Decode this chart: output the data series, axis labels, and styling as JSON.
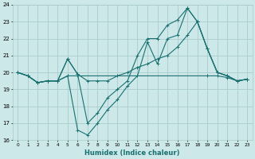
{
  "xlabel": "Humidex (Indice chaleur)",
  "ylabel": "",
  "bg_color": "#cce8e8",
  "line_color": "#1a7070",
  "grid_color": "#aacccc",
  "xlim": [
    -0.5,
    23.5
  ],
  "ylim": [
    16,
    24
  ],
  "xticks": [
    0,
    1,
    2,
    3,
    4,
    5,
    6,
    7,
    8,
    9,
    10,
    11,
    12,
    13,
    14,
    15,
    16,
    17,
    18,
    19,
    20,
    21,
    22,
    23
  ],
  "yticks": [
    16,
    17,
    18,
    19,
    20,
    21,
    22,
    23,
    24
  ],
  "lines": [
    {
      "x": [
        0,
        1,
        2,
        3,
        4,
        5,
        6,
        19,
        20,
        21,
        22,
        23
      ],
      "y": [
        20,
        19.8,
        19.4,
        19.5,
        19.5,
        19.8,
        19.8,
        19.8,
        19.8,
        19.7,
        19.5,
        19.6
      ]
    },
    {
      "x": [
        0,
        1,
        2,
        3,
        4,
        5,
        6,
        7,
        8,
        9,
        10,
        11,
        12,
        13,
        14,
        15,
        16,
        17,
        18,
        19,
        20,
        21,
        22,
        23
      ],
      "y": [
        20,
        19.8,
        19.4,
        19.5,
        19.5,
        19.8,
        16.6,
        16.3,
        17.0,
        17.8,
        18.4,
        19.2,
        19.8,
        21.8,
        20.5,
        22.0,
        22.2,
        23.8,
        23.0,
        21.4,
        20.0,
        19.8,
        19.5,
        19.6
      ]
    },
    {
      "x": [
        0,
        1,
        2,
        3,
        4,
        5,
        6,
        7,
        8,
        9,
        10,
        11,
        12,
        13,
        14,
        15,
        16,
        17,
        18,
        19,
        20,
        21,
        22,
        23
      ],
      "y": [
        20,
        19.8,
        19.4,
        19.5,
        19.5,
        20.8,
        19.9,
        17.0,
        17.6,
        18.5,
        19.0,
        19.5,
        21.0,
        22.0,
        22.0,
        22.8,
        23.1,
        23.8,
        23.0,
        21.4,
        20.0,
        19.8,
        19.5,
        19.6
      ]
    },
    {
      "x": [
        0,
        1,
        2,
        3,
        4,
        5,
        6,
        7,
        8,
        9,
        10,
        11,
        12,
        13,
        14,
        15,
        16,
        17,
        18,
        19,
        20,
        21,
        22,
        23
      ],
      "y": [
        20,
        19.8,
        19.4,
        19.5,
        19.5,
        20.8,
        19.9,
        19.5,
        19.5,
        19.5,
        19.8,
        20.0,
        20.3,
        20.5,
        20.8,
        21.0,
        21.5,
        22.2,
        23.0,
        21.4,
        20.0,
        19.8,
        19.5,
        19.6
      ]
    }
  ]
}
